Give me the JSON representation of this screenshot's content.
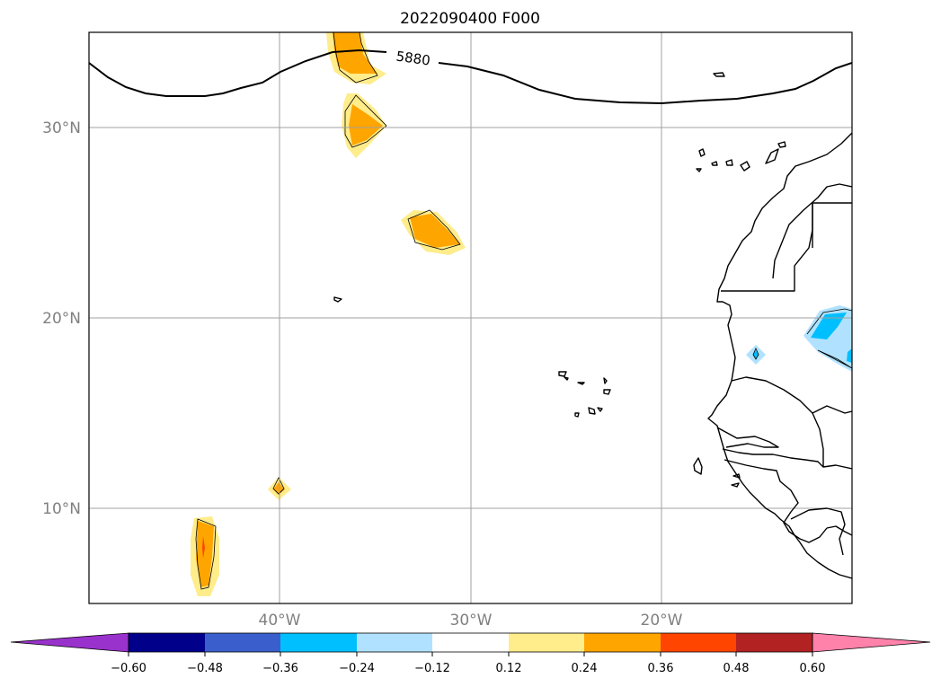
{
  "map": {
    "title": "2022090400 F000",
    "lat_labels": [
      "30°N",
      "20°N",
      "10°N"
    ],
    "lon_labels": [
      "40°W",
      "30°W",
      "20°W"
    ],
    "contour_label": "5880"
  },
  "colorbar": {
    "colors": [
      "#9932cc",
      "#00008b",
      "#3a5fcd",
      "#00bfff",
      "#b0e2ff",
      "#ffffff",
      "#ffec8b",
      "#ffa500",
      "#ff4500",
      "#b22222",
      "#ff82ab"
    ],
    "tick_labels": [
      "−0.60",
      "−0.48",
      "−0.36",
      "−0.24",
      "−0.12",
      "0.12",
      "0.24",
      "0.36",
      "0.48",
      "0.60"
    ]
  }
}
